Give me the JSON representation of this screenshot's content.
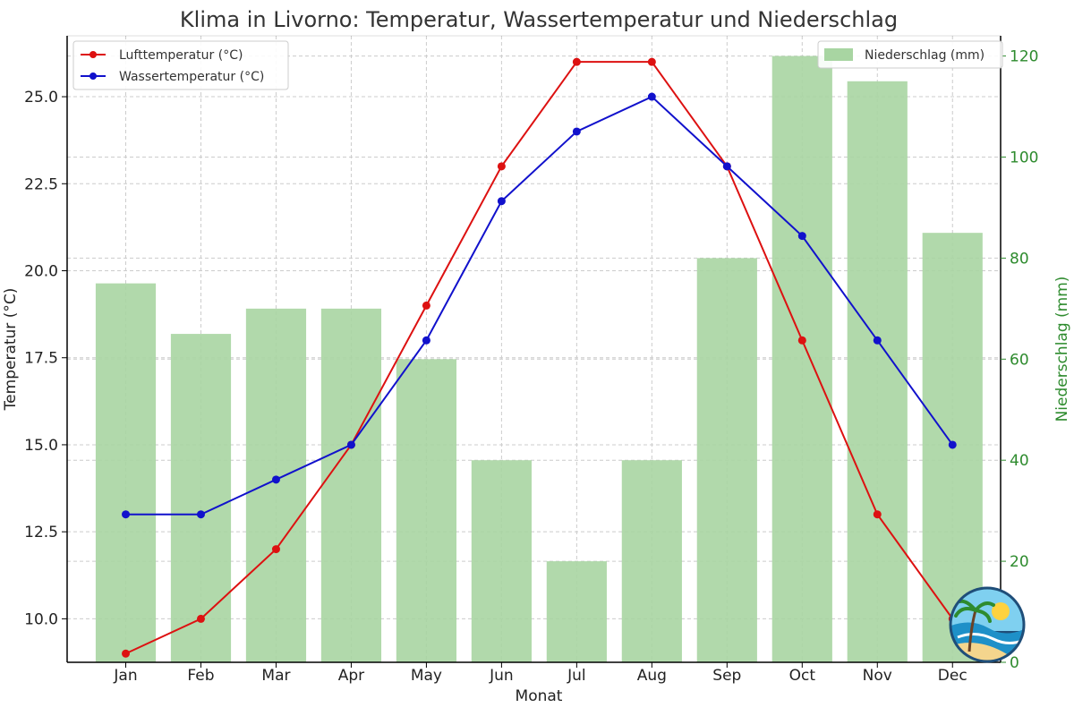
{
  "chart_data": {
    "type": "bar",
    "title": "Klima in Livorno: Temperatur, Wassertemperatur und Niederschlag",
    "xlabel": "Monat",
    "ylabel": "Temperatur (°C)",
    "y2label": "Niederschlag (mm)",
    "categories": [
      "Jan",
      "Feb",
      "Mar",
      "Apr",
      "May",
      "Jun",
      "Jul",
      "Aug",
      "Sep",
      "Oct",
      "Nov",
      "Dec"
    ],
    "ylim": [
      8.75,
      26.75
    ],
    "y2lim": [
      0,
      124
    ],
    "yticks": [
      "10.0",
      "12.5",
      "15.0",
      "17.5",
      "20.0",
      "22.5",
      "25.0"
    ],
    "y2ticks": [
      "0",
      "20",
      "40",
      "60",
      "80",
      "100",
      "120"
    ],
    "grid": true,
    "series": [
      {
        "name": "Lufttemperatur (°C)",
        "type": "line",
        "axis": "left",
        "color": "#dd1111",
        "values": [
          9,
          10,
          12,
          15,
          19,
          23,
          26,
          26,
          23,
          18,
          13,
          10
        ]
      },
      {
        "name": "Wassertemperatur (°C)",
        "type": "line",
        "axis": "left",
        "color": "#1111cc",
        "values": [
          13,
          13,
          14,
          15,
          18,
          22,
          24,
          25,
          23,
          21,
          18,
          15
        ]
      },
      {
        "name": "Niederschlag (mm)",
        "type": "bar",
        "axis": "right",
        "color": "#a8d5a2",
        "values": [
          75,
          65,
          70,
          70,
          60,
          40,
          20,
          40,
          80,
          120,
          115,
          85
        ]
      }
    ],
    "legend_left_position": "top-left",
    "legend_right_position": "top-right"
  },
  "icons": {
    "logo": "beach-palm-logo-icon"
  }
}
